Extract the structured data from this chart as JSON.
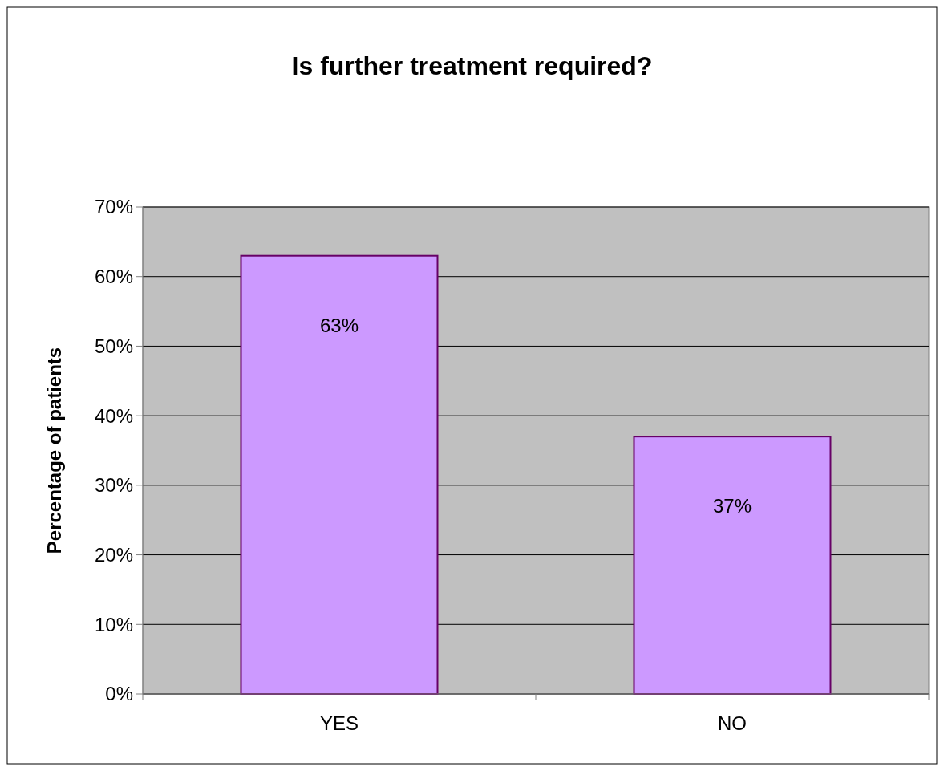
{
  "chart_data": {
    "type": "bar",
    "title": "Is further treatment required?",
    "ylabel": "Percentage of patients",
    "categories": [
      "YES",
      "NO"
    ],
    "values": [
      63,
      37
    ],
    "color": "#cc99ff",
    "ylim": [
      0,
      70
    ],
    "yticks": [
      {
        "value": 0,
        "label": "0%"
      },
      {
        "value": 10,
        "label": "10%"
      },
      {
        "value": 20,
        "label": "20%"
      },
      {
        "value": 30,
        "label": "30%"
      },
      {
        "value": 40,
        "label": "40%"
      },
      {
        "value": 50,
        "label": "50%"
      },
      {
        "value": 60,
        "label": "60%"
      },
      {
        "value": 70,
        "label": "70%"
      }
    ],
    "grid": "y",
    "data_labels": true,
    "value_labels": [
      "63%",
      "37%"
    ]
  }
}
